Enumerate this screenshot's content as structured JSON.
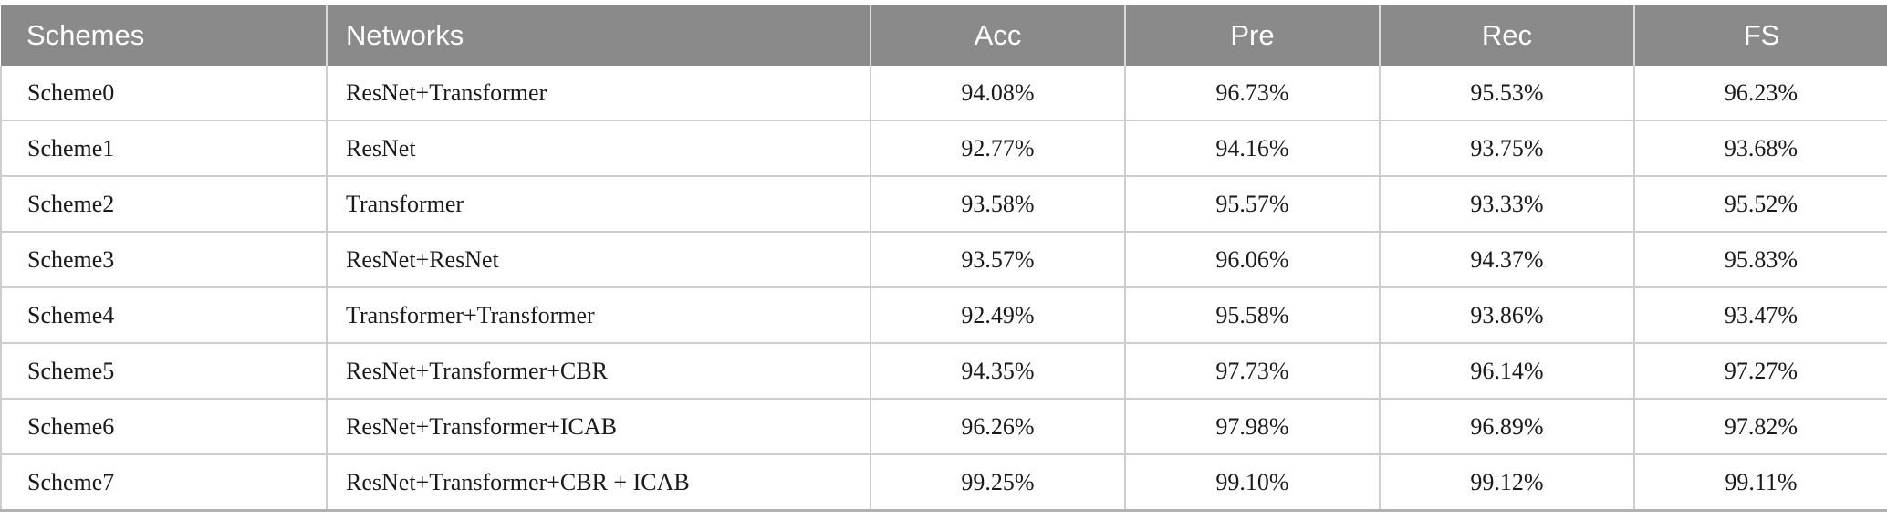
{
  "table": {
    "columns": [
      {
        "key": "schemes",
        "label": "Schemes"
      },
      {
        "key": "networks",
        "label": "Networks"
      },
      {
        "key": "acc",
        "label": "Acc"
      },
      {
        "key": "pre",
        "label": "Pre"
      },
      {
        "key": "rec",
        "label": "Rec"
      },
      {
        "key": "fs",
        "label": "FS"
      }
    ],
    "rows": [
      [
        "Scheme0",
        "ResNet+Transformer",
        "94.08%",
        "96.73%",
        "95.53%",
        "96.23%"
      ],
      [
        "Scheme1",
        "ResNet",
        "92.77%",
        "94.16%",
        "93.75%",
        "93.68%"
      ],
      [
        "Scheme2",
        "Transformer",
        "93.58%",
        "95.57%",
        "93.33%",
        "95.52%"
      ],
      [
        "Scheme3",
        "ResNet+ResNet",
        "93.57%",
        "96.06%",
        "94.37%",
        "95.83%"
      ],
      [
        "Scheme4",
        "Transformer+Transformer",
        "92.49%",
        "95.58%",
        "93.86%",
        "93.47%"
      ],
      [
        "Scheme5",
        "ResNet+Transformer+CBR",
        "94.35%",
        "97.73%",
        "96.14%",
        "97.27%"
      ],
      [
        "Scheme6",
        "ResNet+Transformer+ICAB",
        "96.26%",
        "97.98%",
        "96.89%",
        "97.82%"
      ],
      [
        "Scheme7",
        "ResNet+Transformer+CBR + ICAB",
        "99.25%",
        "99.10%",
        "99.12%",
        "99.11%"
      ]
    ]
  },
  "colors": {
    "header_bg": "#8a8a8a",
    "header_text": "#ffffff",
    "body_text": "#1a1a1a",
    "grid_line": "#cdcdcd",
    "header_separator": "#d9d9d9",
    "bottom_rule": "#b1b1b1"
  }
}
